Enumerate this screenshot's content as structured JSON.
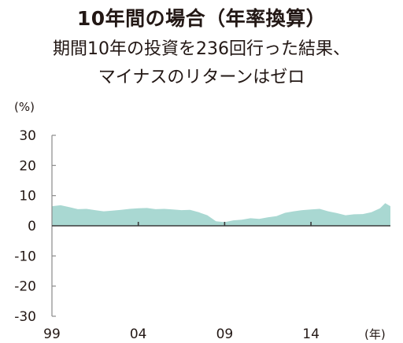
{
  "title": "10年間の場合（年率換算）",
  "subtitle_line1": "期間10年の投資を236回行った結果、",
  "subtitle_line2": "マイナスのリターンはゼロ",
  "chart_data": {
    "type": "area",
    "yunit": "(%)",
    "xunit": "(年)",
    "ylim": [
      -30,
      30
    ],
    "yticks": [
      30,
      20,
      10,
      0,
      -10,
      -20,
      -30
    ],
    "xticks": [
      "99",
      "04",
      "09",
      "14"
    ],
    "xtick_values": [
      1999,
      2004,
      2009,
      2014
    ],
    "xlim": [
      1999,
      2018.6
    ],
    "grid": false,
    "fill_color": "#a9d8d2",
    "series": [
      {
        "x": [
          1999,
          1999.5,
          2000,
          2000.5,
          2001,
          2001.5,
          2002,
          2002.5,
          2003,
          2003.5,
          2004,
          2004.5,
          2005,
          2005.5,
          2006,
          2006.5,
          2007,
          2007.5,
          2008,
          2008.5,
          2009,
          2009.5,
          2010,
          2010.5,
          2011,
          2011.5,
          2012,
          2012.5,
          2013,
          2013.5,
          2014,
          2014.5,
          2015,
          2015.5,
          2016,
          2016.5,
          2017,
          2017.5,
          2018,
          2018.3,
          2018.6
        ],
        "values": [
          6.5,
          6.8,
          6.2,
          5.5,
          5.6,
          5.2,
          4.8,
          5.0,
          5.3,
          5.6,
          5.8,
          5.9,
          5.5,
          5.6,
          5.4,
          5.2,
          5.3,
          4.5,
          3.5,
          1.5,
          1.2,
          1.8,
          2.0,
          2.5,
          2.3,
          2.8,
          3.2,
          4.3,
          4.8,
          5.2,
          5.4,
          5.6,
          4.8,
          4.2,
          3.5,
          3.8,
          3.9,
          4.5,
          5.8,
          7.5,
          6.5
        ]
      }
    ]
  }
}
